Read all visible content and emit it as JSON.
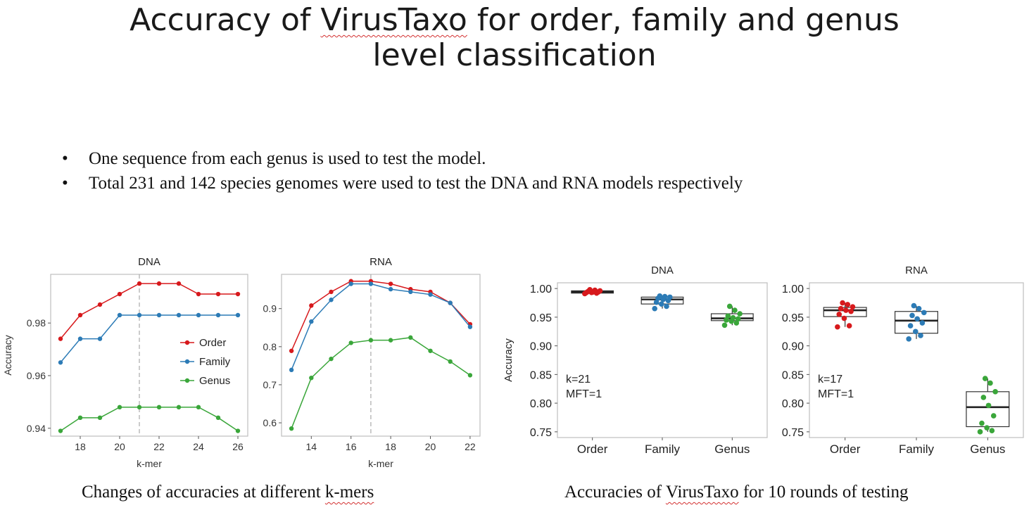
{
  "slide": {
    "title_line1_pre": "Accuracy of ",
    "title_line1_brand": "VirusTaxo",
    "title_line1_post": " for order, family and genus",
    "title_line2": "level classification",
    "bullets": [
      "One sequence from each genus is used to test the model.",
      "Total 231 and 142 species genomes were used to test the DNA and RNA models respectively"
    ],
    "caption_left_pre": "Changes of accuracies at different ",
    "caption_left_squiggle": "k-mers",
    "caption_right_pre": "Accuracies of ",
    "caption_right_brand": "VirusTaxo",
    "caption_right_post": " for 10 rounds of testing"
  },
  "colors": {
    "order": "#d7191c",
    "family": "#2c7bb6",
    "genus": "#3aa63a"
  },
  "chart_data": [
    {
      "type": "line",
      "title": "DNA",
      "xlabel": "k-mer",
      "ylabel": "Accuracy",
      "x": [
        17,
        18,
        19,
        20,
        21,
        22,
        23,
        24,
        25,
        26
      ],
      "xlim": [
        16.5,
        26.5
      ],
      "ylim": [
        0.937,
        0.9985
      ],
      "xticks": [
        18,
        20,
        22,
        24,
        26
      ],
      "yticks": [
        0.94,
        0.96,
        0.98
      ],
      "vline": 21,
      "legend": "right",
      "series": [
        {
          "name": "Order",
          "color": "order",
          "values": [
            0.974,
            0.983,
            0.987,
            0.991,
            0.995,
            0.995,
            0.995,
            0.991,
            0.991,
            0.991
          ]
        },
        {
          "name": "Family",
          "color": "family",
          "values": [
            0.965,
            0.974,
            0.974,
            0.983,
            0.983,
            0.983,
            0.983,
            0.983,
            0.983,
            0.983
          ]
        },
        {
          "name": "Genus",
          "color": "genus",
          "values": [
            0.939,
            0.944,
            0.944,
            0.948,
            0.948,
            0.948,
            0.948,
            0.948,
            0.944,
            0.939
          ]
        }
      ]
    },
    {
      "type": "line",
      "title": "RNA",
      "xlabel": "k-mer",
      "ylabel": "",
      "x": [
        13,
        14,
        15,
        16,
        17,
        18,
        19,
        20,
        21,
        22
      ],
      "xlim": [
        12.5,
        22.5
      ],
      "ylim": [
        0.565,
        0.99
      ],
      "xticks": [
        14,
        16,
        18,
        20,
        22
      ],
      "yticks": [
        0.6,
        0.7,
        0.8,
        0.9
      ],
      "vline": 17,
      "series": [
        {
          "name": "Order",
          "color": "order",
          "values": [
            0.789,
            0.908,
            0.944,
            0.972,
            0.972,
            0.965,
            0.951,
            0.944,
            0.915,
            0.859
          ]
        },
        {
          "name": "Family",
          "color": "family",
          "values": [
            0.739,
            0.866,
            0.923,
            0.965,
            0.965,
            0.951,
            0.944,
            0.937,
            0.915,
            0.852
          ]
        },
        {
          "name": "Genus",
          "color": "genus",
          "values": [
            0.585,
            0.718,
            0.768,
            0.81,
            0.817,
            0.817,
            0.824,
            0.789,
            0.761,
            0.725
          ]
        }
      ]
    },
    {
      "type": "box",
      "title": "DNA",
      "ylabel": "Accuracy",
      "categories": [
        "Order",
        "Family",
        "Genus"
      ],
      "ylim": [
        0.74,
        1.01
      ],
      "yticks": [
        "1.00",
        "0.95",
        "0.90",
        "0.85",
        "0.80",
        "0.75"
      ],
      "annotation": [
        "k=21",
        "MFT=1"
      ],
      "boxes": [
        {
          "category": "Order",
          "color": "order",
          "min": 0.991,
          "q1": 0.992,
          "median": 0.994,
          "q3": 0.996,
          "max": 0.998,
          "points": [
            0.991,
            0.992,
            0.993,
            0.993,
            0.994,
            0.994,
            0.995,
            0.996,
            0.997,
            0.998
          ]
        },
        {
          "category": "Family",
          "color": "family",
          "min": 0.965,
          "q1": 0.973,
          "median": 0.981,
          "q3": 0.985,
          "max": 0.987,
          "points": [
            0.965,
            0.969,
            0.973,
            0.976,
            0.979,
            0.981,
            0.983,
            0.985,
            0.986,
            0.987
          ]
        },
        {
          "category": "Genus",
          "color": "genus",
          "min": 0.936,
          "q1": 0.944,
          "median": 0.948,
          "q3": 0.956,
          "max": 0.969,
          "points": [
            0.936,
            0.94,
            0.943,
            0.945,
            0.947,
            0.949,
            0.952,
            0.956,
            0.962,
            0.969
          ]
        }
      ]
    },
    {
      "type": "box",
      "title": "RNA",
      "ylabel": "",
      "categories": [
        "Order",
        "Family",
        "Genus"
      ],
      "ylim": [
        0.74,
        1.01
      ],
      "yticks": [
        "1.00",
        "0.95",
        "0.90",
        "0.85",
        "0.80",
        "0.75"
      ],
      "annotation": [
        "k=17",
        "MFT=1"
      ],
      "boxes": [
        {
          "category": "Order",
          "color": "order",
          "min": 0.933,
          "q1": 0.951,
          "median": 0.962,
          "q3": 0.967,
          "max": 0.975,
          "points": [
            0.933,
            0.935,
            0.948,
            0.955,
            0.96,
            0.962,
            0.965,
            0.968,
            0.972,
            0.975
          ]
        },
        {
          "category": "Family",
          "color": "family",
          "min": 0.912,
          "q1": 0.922,
          "median": 0.944,
          "q3": 0.96,
          "max": 0.97,
          "points": [
            0.912,
            0.918,
            0.925,
            0.935,
            0.94,
            0.947,
            0.953,
            0.958,
            0.965,
            0.97
          ]
        },
        {
          "category": "Genus",
          "color": "genus",
          "min": 0.75,
          "q1": 0.759,
          "median": 0.793,
          "q3": 0.82,
          "max": 0.843,
          "points": [
            0.75,
            0.752,
            0.757,
            0.765,
            0.778,
            0.796,
            0.81,
            0.82,
            0.835,
            0.843
          ]
        }
      ]
    }
  ]
}
